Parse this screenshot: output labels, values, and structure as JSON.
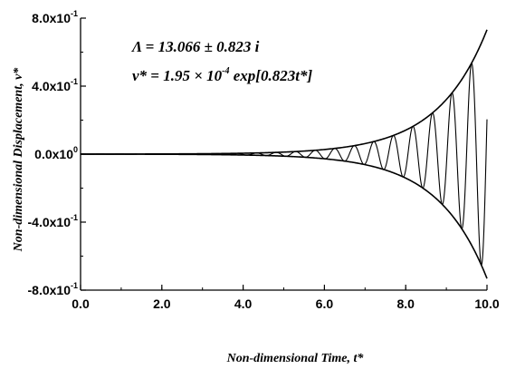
{
  "chart_data": {
    "type": "line",
    "title": "",
    "xlabel": "Non-dimensional Time, t*",
    "ylabel": "Non-dimensional Displacement, v*",
    "xlim": [
      0,
      10
    ],
    "ylim": [
      -0.8,
      0.8
    ],
    "x_ticks": [
      "0.0",
      "2.0",
      "4.0",
      "6.0",
      "8.0",
      "10.0"
    ],
    "x_tick_values": [
      0,
      2,
      4,
      6,
      8,
      10
    ],
    "y_ticks": [
      {
        "value": 0.8,
        "mantissa": "8.0x10",
        "exp": "-1"
      },
      {
        "value": 0.4,
        "mantissa": "4.0x10",
        "exp": "-1"
      },
      {
        "value": 0.0,
        "mantissa": "0.0x10",
        "exp": "0"
      },
      {
        "value": -0.4,
        "mantissa": "-4.0x10",
        "exp": "-1"
      },
      {
        "value": -0.8,
        "mantissa": "-8.0x10",
        "exp": "-1"
      }
    ],
    "grid": false,
    "annotations": {
      "eigenvalue": "Λ = 13.066 ± 0.823 i",
      "envelope_lhs": "v* = 1.95 × 10",
      "envelope_exp": "-4",
      "envelope_rhs": " exp[0.823t*]"
    },
    "series": [
      {
        "kind": "envelope",
        "amplitude": 0.000195,
        "growth_rate": 0.823,
        "x_range": [
          0,
          10
        ]
      },
      {
        "kind": "response",
        "amplitude": 0.000195,
        "growth_rate": 0.823,
        "angular_frequency": 13.066,
        "x_range": [
          0,
          10
        ]
      }
    ],
    "axis_color": "#000000",
    "line_color": "#000000"
  }
}
